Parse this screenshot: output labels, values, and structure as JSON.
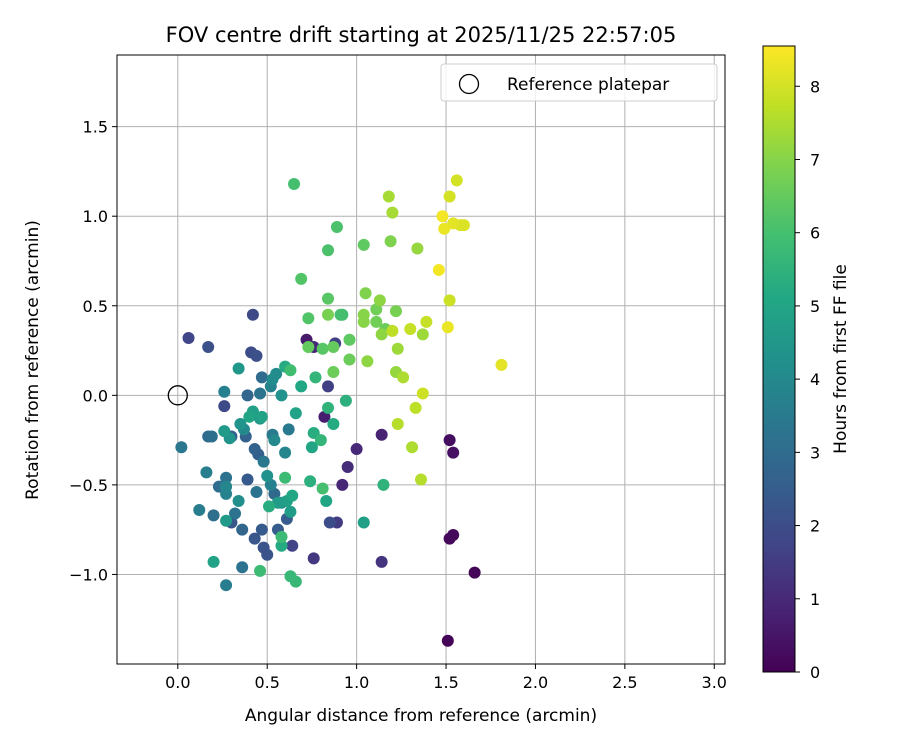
{
  "chart_data": {
    "type": "scatter",
    "title": "FOV centre drift starting at 2025/11/25 22:57:05",
    "xlabel": "Angular distance from reference (arcmin)",
    "ylabel": "Rotation from reference (arcmin)",
    "xlim": [
      -0.34,
      3.06
    ],
    "ylim": [
      -1.5,
      1.9
    ],
    "xticks": [
      0.0,
      0.5,
      1.0,
      1.5,
      2.0,
      2.5,
      3.0
    ],
    "xtick_labels": [
      "0.0",
      "0.5",
      "1.0",
      "1.5",
      "2.0",
      "2.5",
      "3.0"
    ],
    "yticks": [
      -1.0,
      -0.5,
      0.0,
      0.5,
      1.0,
      1.5
    ],
    "ytick_labels": [
      "−1.0",
      "−0.5",
      "0.0",
      "0.5",
      "1.0",
      "1.5"
    ],
    "grid": true,
    "colormap": "viridis",
    "colorbar": {
      "label": "Hours from first FF file",
      "range": [
        0,
        8.55
      ],
      "ticks": [
        0,
        1,
        2,
        3,
        4,
        5,
        6,
        7,
        8
      ],
      "tick_labels": [
        "0",
        "1",
        "2",
        "3",
        "4",
        "5",
        "6",
        "7",
        "8"
      ]
    },
    "legend": {
      "position": "top-right",
      "entries": [
        {
          "label": "Reference platepar",
          "marker": "open-circle"
        }
      ]
    },
    "reference_point": {
      "x": 0.0,
      "y": 0.0
    },
    "points": [
      {
        "x": 1.51,
        "y": -1.37,
        "c": 0.05
      },
      {
        "x": 1.66,
        "y": -0.99,
        "c": 0.1
      },
      {
        "x": 1.52,
        "y": -0.8,
        "c": 0.15
      },
      {
        "x": 1.54,
        "y": -0.78,
        "c": 0.2
      },
      {
        "x": 1.52,
        "y": -0.25,
        "c": 0.3
      },
      {
        "x": 1.54,
        "y": -0.32,
        "c": 0.35
      },
      {
        "x": 0.72,
        "y": 0.31,
        "c": 0.6
      },
      {
        "x": 0.82,
        "y": -0.12,
        "c": 0.7
      },
      {
        "x": 1.14,
        "y": -0.22,
        "c": 0.8
      },
      {
        "x": 0.92,
        "y": -0.5,
        "c": 0.9
      },
      {
        "x": 0.76,
        "y": 0.27,
        "c": 0.95
      },
      {
        "x": 1.0,
        "y": -0.3,
        "c": 1.0
      },
      {
        "x": 0.95,
        "y": -0.4,
        "c": 1.1
      },
      {
        "x": 1.14,
        "y": -0.93,
        "c": 1.3
      },
      {
        "x": 0.76,
        "y": -0.91,
        "c": 1.4
      },
      {
        "x": 0.89,
        "y": -0.71,
        "c": 1.5
      },
      {
        "x": 0.88,
        "y": 0.29,
        "c": 1.6
      },
      {
        "x": 0.84,
        "y": 0.05,
        "c": 1.6
      },
      {
        "x": 0.64,
        "y": -0.84,
        "c": 1.7
      },
      {
        "x": 0.06,
        "y": 0.32,
        "c": 1.8
      },
      {
        "x": 0.42,
        "y": 0.45,
        "c": 1.9
      },
      {
        "x": 0.26,
        "y": -0.06,
        "c": 1.9
      },
      {
        "x": 0.41,
        "y": 0.24,
        "c": 2.0
      },
      {
        "x": 0.85,
        "y": -0.71,
        "c": 2.0
      },
      {
        "x": 0.17,
        "y": 0.27,
        "c": 2.1
      },
      {
        "x": 0.44,
        "y": 0.22,
        "c": 2.1
      },
      {
        "x": 0.48,
        "y": -0.85,
        "c": 2.2
      },
      {
        "x": 0.5,
        "y": -0.89,
        "c": 2.2
      },
      {
        "x": 0.43,
        "y": -0.8,
        "c": 2.3
      },
      {
        "x": 0.3,
        "y": -0.71,
        "c": 2.3
      },
      {
        "x": 0.39,
        "y": -0.47,
        "c": 2.4
      },
      {
        "x": 0.47,
        "y": -0.75,
        "c": 2.4
      },
      {
        "x": 0.56,
        "y": -0.75,
        "c": 2.5
      },
      {
        "x": 0.61,
        "y": -0.69,
        "c": 2.5
      },
      {
        "x": 0.45,
        "y": -0.33,
        "c": 2.6
      },
      {
        "x": 0.3,
        "y": -0.23,
        "c": 2.6
      },
      {
        "x": 0.38,
        "y": -0.23,
        "c": 2.7
      },
      {
        "x": 0.43,
        "y": -0.3,
        "c": 2.7
      },
      {
        "x": 0.36,
        "y": -0.75,
        "c": 2.8
      },
      {
        "x": 0.39,
        "y": 0.0,
        "c": 2.8
      },
      {
        "x": 0.54,
        "y": -0.55,
        "c": 2.9
      },
      {
        "x": 0.17,
        "y": -0.23,
        "c": 3.0
      },
      {
        "x": 0.23,
        "y": -0.51,
        "c": 3.0
      },
      {
        "x": 0.47,
        "y": 0.1,
        "c": 3.0
      },
      {
        "x": 0.2,
        "y": -0.67,
        "c": 3.1
      },
      {
        "x": 0.19,
        "y": -0.23,
        "c": 3.1
      },
      {
        "x": 0.32,
        "y": -0.66,
        "c": 3.2
      },
      {
        "x": 0.36,
        "y": -0.96,
        "c": 3.2
      },
      {
        "x": 0.27,
        "y": -0.46,
        "c": 3.2
      },
      {
        "x": 0.46,
        "y": 0.01,
        "c": 3.3
      },
      {
        "x": 0.44,
        "y": -0.54,
        "c": 3.3
      },
      {
        "x": 0.02,
        "y": -0.29,
        "c": 3.4
      },
      {
        "x": 0.48,
        "y": -0.37,
        "c": 3.4
      },
      {
        "x": 0.53,
        "y": -0.22,
        "c": 3.5
      },
      {
        "x": 0.62,
        "y": -0.19,
        "c": 3.5
      },
      {
        "x": 0.16,
        "y": -0.43,
        "c": 3.6
      },
      {
        "x": 0.12,
        "y": -0.64,
        "c": 3.6
      },
      {
        "x": 0.27,
        "y": -1.06,
        "c": 3.6
      },
      {
        "x": 0.26,
        "y": 0.02,
        "c": 3.7
      },
      {
        "x": 0.52,
        "y": -0.5,
        "c": 3.7
      },
      {
        "x": 0.52,
        "y": 0.05,
        "c": 3.8
      },
      {
        "x": 0.27,
        "y": -0.55,
        "c": 3.8
      },
      {
        "x": 0.6,
        "y": -0.32,
        "c": 3.9
      },
      {
        "x": 0.27,
        "y": -0.51,
        "c": 3.9
      },
      {
        "x": 0.54,
        "y": -0.25,
        "c": 4.0
      },
      {
        "x": 0.37,
        "y": -0.19,
        "c": 4.0
      },
      {
        "x": 0.53,
        "y": 0.09,
        "c": 4.1
      },
      {
        "x": 0.55,
        "y": 0.12,
        "c": 4.1
      },
      {
        "x": 0.34,
        "y": -0.59,
        "c": 4.2
      },
      {
        "x": 0.58,
        "y": -0.6,
        "c": 4.2
      },
      {
        "x": 0.58,
        "y": 0.0,
        "c": 4.3
      },
      {
        "x": 0.5,
        "y": -0.45,
        "c": 4.3
      },
      {
        "x": 0.35,
        "y": -0.16,
        "c": 4.4
      },
      {
        "x": 0.29,
        "y": -0.24,
        "c": 4.4
      },
      {
        "x": 0.46,
        "y": -0.13,
        "c": 4.5
      },
      {
        "x": 0.34,
        "y": 0.15,
        "c": 4.5
      },
      {
        "x": 0.26,
        "y": -0.2,
        "c": 4.6
      },
      {
        "x": 0.27,
        "y": -0.7,
        "c": 4.6
      },
      {
        "x": 0.56,
        "y": -0.6,
        "c": 4.7
      },
      {
        "x": 0.63,
        "y": -0.65,
        "c": 4.7
      },
      {
        "x": 0.42,
        "y": -0.09,
        "c": 4.8
      },
      {
        "x": 0.61,
        "y": -0.59,
        "c": 4.8
      },
      {
        "x": 1.04,
        "y": -0.71,
        "c": 4.8
      },
      {
        "x": 0.47,
        "y": -0.12,
        "c": 4.9
      },
      {
        "x": 0.66,
        "y": -0.1,
        "c": 4.9
      },
      {
        "x": 0.2,
        "y": -0.93,
        "c": 4.9
      },
      {
        "x": 0.83,
        "y": -0.59,
        "c": 5.0
      },
      {
        "x": 0.75,
        "y": -0.29,
        "c": 5.0
      },
      {
        "x": 0.4,
        "y": -0.12,
        "c": 5.0
      },
      {
        "x": 0.64,
        "y": -0.56,
        "c": 5.1
      },
      {
        "x": 0.69,
        "y": 0.05,
        "c": 5.1
      },
      {
        "x": 0.58,
        "y": -0.84,
        "c": 5.2
      },
      {
        "x": 0.6,
        "y": 0.16,
        "c": 5.2
      },
      {
        "x": 0.87,
        "y": -0.16,
        "c": 5.2
      },
      {
        "x": 0.76,
        "y": -0.21,
        "c": 5.3
      },
      {
        "x": 0.51,
        "y": -0.62,
        "c": 5.3
      },
      {
        "x": 0.74,
        "y": -0.48,
        "c": 5.4
      },
      {
        "x": 0.94,
        "y": -0.03,
        "c": 5.4
      },
      {
        "x": 0.84,
        "y": -0.07,
        "c": 5.5
      },
      {
        "x": 1.15,
        "y": -0.5,
        "c": 5.5
      },
      {
        "x": 0.77,
        "y": 0.1,
        "c": 5.6
      },
      {
        "x": 0.8,
        "y": -0.25,
        "c": 5.6
      },
      {
        "x": 0.66,
        "y": -1.04,
        "c": 5.7
      },
      {
        "x": 0.63,
        "y": -1.01,
        "c": 5.7
      },
      {
        "x": 0.58,
        "y": -0.79,
        "c": 5.8
      },
      {
        "x": 0.6,
        "y": -0.46,
        "c": 5.8
      },
      {
        "x": 0.46,
        "y": -0.98,
        "c": 5.8
      },
      {
        "x": 0.63,
        "y": 0.14,
        "c": 5.9
      },
      {
        "x": 0.92,
        "y": 0.45,
        "c": 5.9
      },
      {
        "x": 0.81,
        "y": -0.52,
        "c": 6.0
      },
      {
        "x": 0.91,
        "y": 0.45,
        "c": 6.0
      },
      {
        "x": 0.65,
        "y": 1.18,
        "c": 6.0
      },
      {
        "x": 0.89,
        "y": 0.94,
        "c": 6.1
      },
      {
        "x": 0.84,
        "y": 0.81,
        "c": 6.1
      },
      {
        "x": 0.69,
        "y": 0.65,
        "c": 6.2
      },
      {
        "x": 0.73,
        "y": 0.43,
        "c": 6.2
      },
      {
        "x": 0.84,
        "y": 0.54,
        "c": 6.3
      },
      {
        "x": 0.81,
        "y": 0.26,
        "c": 6.3
      },
      {
        "x": 0.96,
        "y": 0.31,
        "c": 6.4
      },
      {
        "x": 1.04,
        "y": 0.84,
        "c": 6.4
      },
      {
        "x": 0.87,
        "y": 0.27,
        "c": 6.5
      },
      {
        "x": 0.73,
        "y": 0.27,
        "c": 6.5
      },
      {
        "x": 0.87,
        "y": 0.13,
        "c": 6.6
      },
      {
        "x": 0.96,
        "y": 0.2,
        "c": 6.6
      },
      {
        "x": 1.16,
        "y": 0.37,
        "c": 6.6
      },
      {
        "x": 1.11,
        "y": 0.48,
        "c": 6.7
      },
      {
        "x": 1.11,
        "y": 0.41,
        "c": 6.7
      },
      {
        "x": 1.22,
        "y": 0.47,
        "c": 6.8
      },
      {
        "x": 0.84,
        "y": 0.45,
        "c": 6.8
      },
      {
        "x": 1.05,
        "y": 0.57,
        "c": 6.9
      },
      {
        "x": 1.19,
        "y": 0.86,
        "c": 6.9
      },
      {
        "x": 1.04,
        "y": 0.45,
        "c": 7.0
      },
      {
        "x": 1.04,
        "y": 0.41,
        "c": 7.0
      },
      {
        "x": 1.13,
        "y": 0.53,
        "c": 7.1
      },
      {
        "x": 1.14,
        "y": 0.34,
        "c": 7.1
      },
      {
        "x": 1.06,
        "y": 0.19,
        "c": 7.1
      },
      {
        "x": 1.22,
        "y": 0.13,
        "c": 7.2
      },
      {
        "x": 1.34,
        "y": 0.82,
        "c": 7.2
      },
      {
        "x": 1.37,
        "y": 0.34,
        "c": 7.3
      },
      {
        "x": 1.23,
        "y": 0.26,
        "c": 7.3
      },
      {
        "x": 1.2,
        "y": 1.02,
        "c": 7.4
      },
      {
        "x": 1.18,
        "y": 1.11,
        "c": 7.4
      },
      {
        "x": 1.26,
        "y": 0.1,
        "c": 7.5
      },
      {
        "x": 1.31,
        "y": -0.29,
        "c": 7.5
      },
      {
        "x": 1.36,
        "y": -0.47,
        "c": 7.6
      },
      {
        "x": 1.23,
        "y": -0.16,
        "c": 7.6
      },
      {
        "x": 1.33,
        "y": -0.07,
        "c": 7.7
      },
      {
        "x": 1.2,
        "y": 0.36,
        "c": 7.7
      },
      {
        "x": 1.3,
        "y": 0.37,
        "c": 7.8
      },
      {
        "x": 1.39,
        "y": 0.41,
        "c": 7.8
      },
      {
        "x": 1.37,
        "y": 0.01,
        "c": 7.9
      },
      {
        "x": 1.52,
        "y": 0.53,
        "c": 7.9
      },
      {
        "x": 1.56,
        "y": 1.2,
        "c": 8.0
      },
      {
        "x": 1.52,
        "y": 1.11,
        "c": 8.0
      },
      {
        "x": 1.58,
        "y": 0.95,
        "c": 8.1
      },
      {
        "x": 1.6,
        "y": 0.95,
        "c": 8.1
      },
      {
        "x": 1.81,
        "y": 0.17,
        "c": 8.2
      },
      {
        "x": 1.54,
        "y": 0.96,
        "c": 8.2
      },
      {
        "x": 1.49,
        "y": 0.93,
        "c": 8.3
      },
      {
        "x": 1.51,
        "y": 0.38,
        "c": 8.3
      },
      {
        "x": 1.46,
        "y": 0.7,
        "c": 8.4
      },
      {
        "x": 1.48,
        "y": 1.0,
        "c": 8.4
      }
    ]
  }
}
